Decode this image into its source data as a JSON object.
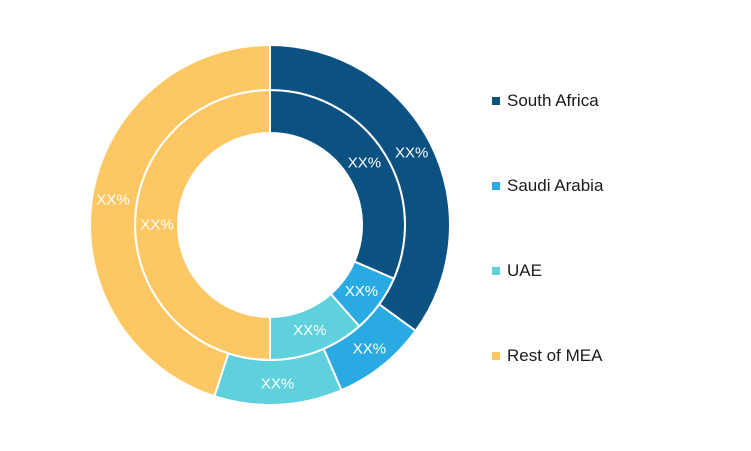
{
  "chart_data": {
    "type": "pie",
    "variant": "nested-donut",
    "legend_position": "right",
    "categories": [
      "South Africa",
      "Saudi Arabia",
      "UAE",
      "Rest of MEA"
    ],
    "colors": [
      "#0b5283",
      "#2aaae3",
      "#5ed1dc",
      "#fdc864"
    ],
    "series": [
      {
        "ring": "inner",
        "values": [
          31.5,
          7.0,
          11.5,
          50.0
        ],
        "labels": [
          "XX%",
          "XX%",
          "XX%",
          "XX%"
        ]
      },
      {
        "ring": "outer",
        "values": [
          35.0,
          8.5,
          11.5,
          45.0
        ],
        "labels": [
          "XX%",
          "XX%",
          "XX%",
          "XX%"
        ]
      }
    ]
  }
}
